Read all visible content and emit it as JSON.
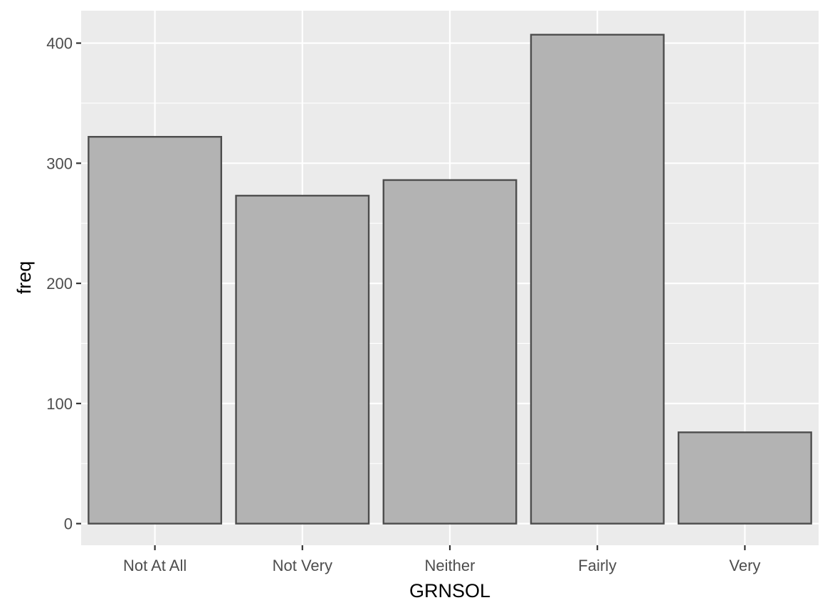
{
  "chart_data": {
    "type": "bar",
    "categories": [
      "Not At All",
      "Not Very",
      "Neither",
      "Fairly",
      "Very"
    ],
    "values": [
      322,
      273,
      286,
      407,
      76
    ],
    "title": "",
    "xlabel": "GRNSOL",
    "ylabel": "freq",
    "ylim": [
      -18,
      427
    ],
    "yticks": [
      0,
      100,
      200,
      300,
      400
    ],
    "grid": true,
    "legend": "none",
    "colors": {
      "panel_background": "#ebebeb",
      "grid": "#ffffff",
      "bar_fill": "#b3b3b3",
      "bar_outline": "#4d4d4d",
      "tick_text": "#4d4d4d",
      "tick_mark": "#333333",
      "axis_title": "#000000"
    }
  }
}
